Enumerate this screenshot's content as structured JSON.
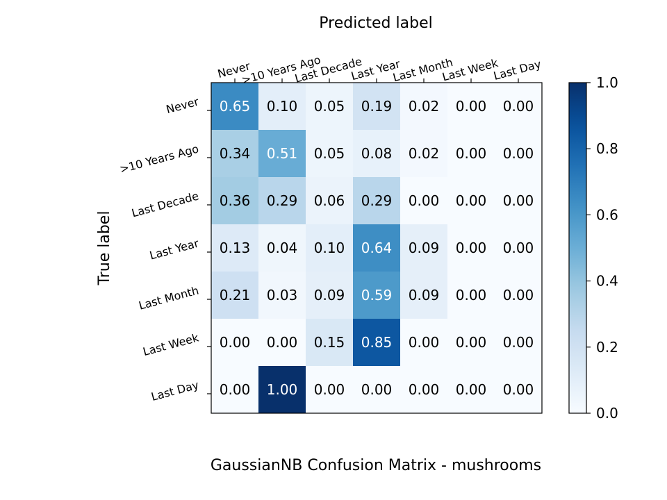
{
  "chart_data": {
    "type": "heatmap",
    "title": "GaussianNB Confusion Matrix - mushrooms",
    "xlabel": "Predicted label",
    "ylabel": "True label",
    "x_categories": [
      "Never",
      ">10 Years Ago",
      "Last Decade",
      "Last Year",
      "Last Month",
      "Last Week",
      "Last Day"
    ],
    "y_categories": [
      "Never",
      ">10 Years Ago",
      "Last Decade",
      "Last Year",
      "Last Month",
      "Last Week",
      "Last Day"
    ],
    "values": [
      [
        0.65,
        0.1,
        0.05,
        0.19,
        0.02,
        0.0,
        0.0
      ],
      [
        0.34,
        0.51,
        0.05,
        0.08,
        0.02,
        0.0,
        0.0
      ],
      [
        0.36,
        0.29,
        0.06,
        0.29,
        0.0,
        0.0,
        0.0
      ],
      [
        0.13,
        0.04,
        0.1,
        0.64,
        0.09,
        0.0,
        0.0
      ],
      [
        0.21,
        0.03,
        0.09,
        0.59,
        0.09,
        0.0,
        0.0
      ],
      [
        0.0,
        0.0,
        0.15,
        0.85,
        0.0,
        0.0,
        0.0
      ],
      [
        0.0,
        1.0,
        0.0,
        0.0,
        0.0,
        0.0,
        0.0
      ]
    ],
    "colormap": "Blues",
    "colorbar": {
      "range": [
        0.0,
        1.0
      ],
      "ticks": [
        "0.0",
        "0.2",
        "0.4",
        "0.6",
        "0.8",
        "1.0"
      ]
    },
    "cell_text_threshold": 0.5,
    "text_color_dark": "#000000",
    "text_color_light": "#ffffff",
    "x_axis_position": "top"
  }
}
